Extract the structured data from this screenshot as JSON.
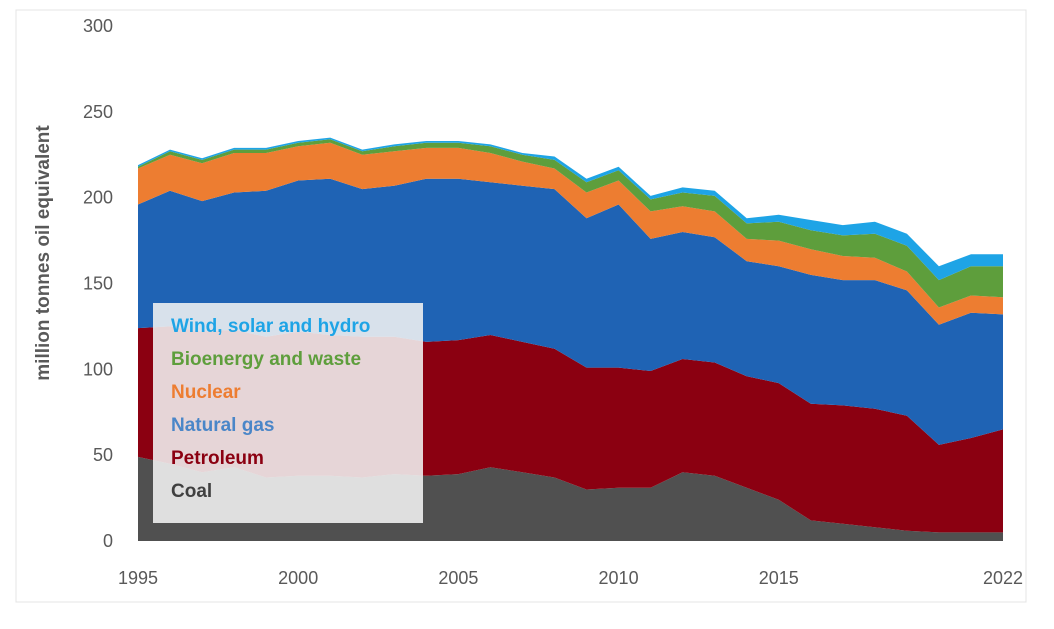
{
  "chart_data": {
    "type": "area",
    "stacked": true,
    "ylabel": "million tonnes oil equivalent",
    "xlabel": "",
    "ylim": [
      0,
      300
    ],
    "yticks": [
      0,
      50,
      100,
      150,
      200,
      250,
      300
    ],
    "xlim": [
      1995,
      2022
    ],
    "xticks": [
      1995,
      2000,
      2005,
      2010,
      2015,
      2022
    ],
    "grid": false,
    "legend_position": "lower-left (inside plot)",
    "x": [
      1995,
      1996,
      1997,
      1998,
      1999,
      2000,
      2001,
      2002,
      2003,
      2004,
      2005,
      2006,
      2007,
      2008,
      2009,
      2010,
      2011,
      2012,
      2013,
      2014,
      2015,
      2016,
      2017,
      2018,
      2019,
      2020,
      2021,
      2022
    ],
    "series": [
      {
        "name": "Coal",
        "color": "#505050",
        "values": [
          49,
          45,
          40,
          43,
          37,
          38,
          38,
          37,
          39,
          38,
          39,
          43,
          40,
          37,
          30,
          31,
          31,
          40,
          38,
          31,
          24,
          12,
          10,
          8,
          6,
          5,
          5,
          5
        ]
      },
      {
        "name": "Petroleum",
        "color": "#8B0011",
        "values": [
          75,
          80,
          82,
          80,
          82,
          84,
          82,
          82,
          80,
          78,
          78,
          77,
          76,
          75,
          71,
          70,
          68,
          66,
          66,
          65,
          68,
          68,
          69,
          69,
          67,
          51,
          55,
          60
        ]
      },
      {
        "name": "Natural gas",
        "color": "#1F63B4",
        "values": [
          72,
          79,
          76,
          80,
          85,
          88,
          91,
          86,
          88,
          95,
          94,
          89,
          91,
          93,
          87,
          95,
          77,
          74,
          73,
          67,
          68,
          75,
          73,
          75,
          73,
          70,
          73,
          67
        ]
      },
      {
        "name": "Nuclear",
        "color": "#ED7D31",
        "values": [
          21,
          21,
          22,
          23,
          22,
          20,
          21,
          20,
          20,
          18,
          18,
          17,
          14,
          12,
          15,
          14,
          16,
          15,
          15,
          13,
          15,
          15,
          14,
          13,
          11,
          10,
          10,
          10
        ]
      },
      {
        "name": "Bioenergy and waste",
        "color": "#5E9E3C",
        "values": [
          1,
          2,
          2,
          2,
          2,
          2,
          2,
          2,
          3,
          3,
          3,
          4,
          4,
          5,
          6,
          6,
          7,
          8,
          9,
          9,
          11,
          11,
          12,
          14,
          15,
          16,
          17,
          18
        ]
      },
      {
        "name": "Wind, solar and hydro",
        "color": "#1EA4E6",
        "values": [
          1,
          1,
          1,
          1,
          1,
          1,
          1,
          1,
          1,
          1,
          1,
          1,
          1,
          2,
          2,
          2,
          2,
          3,
          3,
          3,
          4,
          6,
          6,
          7,
          7,
          8,
          7,
          7
        ]
      }
    ]
  },
  "legend_order": [
    "Wind, solar and hydro",
    "Bioenergy and waste",
    "Nuclear",
    "Natural gas",
    "Petroleum",
    "Coal"
  ]
}
